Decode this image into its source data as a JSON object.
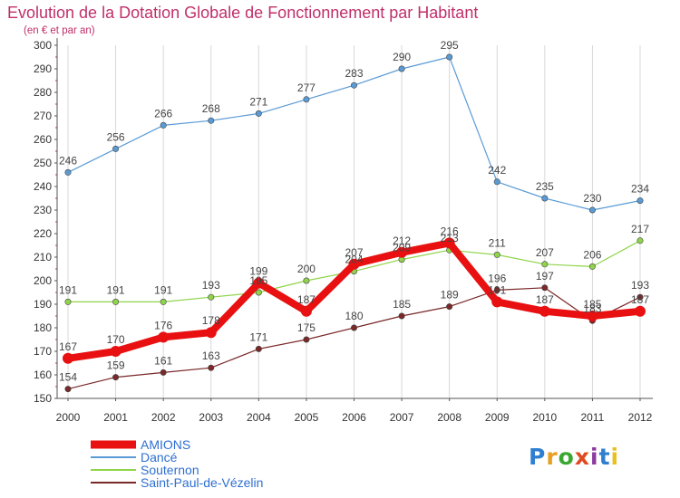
{
  "title": "Evolution de la Dotation Globale de Fonctionnement par Habitant",
  "subtitle": "(en € et par an)",
  "logo": {
    "text": "Proxiti",
    "letter_colors": [
      "#2e7fd0",
      "#e8a020",
      "#3aa830",
      "#e04a20",
      "#8a3aa0",
      "#2e7fd0",
      "#e8c020"
    ]
  },
  "colors": {
    "title": "#c0306a",
    "axis": "#555555",
    "grid": "#d8d8d8",
    "tick_mark": "#c0306a",
    "background": "#ffffff"
  },
  "chart_data": {
    "type": "line",
    "title": "Evolution de la Dotation Globale de Fonctionnement par Habitant",
    "subtitle": "(en € et par an)",
    "x": [
      "2000",
      "2001",
      "2002",
      "2003",
      "2004",
      "2005",
      "2006",
      "2007",
      "2008",
      "2009",
      "2010",
      "2011",
      "2012"
    ],
    "yticks": [
      150,
      160,
      170,
      180,
      190,
      200,
      210,
      220,
      230,
      240,
      250,
      260,
      270,
      280,
      290,
      300
    ],
    "ylim": [
      150,
      300
    ],
    "grid": "vertical",
    "legend_position": "bottom-left",
    "series": [
      {
        "name": "AMIONS",
        "color": "#e81010",
        "values": [
          167,
          170,
          176,
          178,
          199,
          187,
          207,
          212,
          216,
          191,
          187,
          185,
          187
        ],
        "labels": [
          "167",
          "170",
          "176",
          "178",
          "199",
          "187",
          "207",
          "212",
          "216",
          "191",
          "187",
          "185",
          "187"
        ],
        "emphasis": true
      },
      {
        "name": "Dancé",
        "color": "#5b9bd5",
        "values": [
          246,
          256,
          266,
          268,
          271,
          277,
          283,
          290,
          295,
          242,
          235,
          230,
          234
        ],
        "labels": [
          "246",
          "256",
          "266",
          "268",
          "271",
          "277",
          "283",
          "290",
          "295",
          "242",
          "235",
          "230",
          "234"
        ],
        "emphasis": false
      },
      {
        "name": "Souternon",
        "color": "#8fd44a",
        "values": [
          191,
          191,
          191,
          193,
          195,
          200,
          204,
          209,
          213,
          211,
          207,
          206,
          217
        ],
        "labels": [
          "191",
          "191",
          "191",
          "193",
          "195",
          "200",
          "204",
          "209",
          "213",
          "211",
          "207",
          "206",
          "217"
        ],
        "emphasis": false
      },
      {
        "name": "Saint-Paul-de-Vézelin",
        "color": "#7a2828",
        "values": [
          154,
          159,
          161,
          163,
          171,
          175,
          180,
          185,
          189,
          196,
          197,
          183,
          193
        ],
        "labels": [
          "154",
          "159",
          "161",
          "163",
          "171",
          "175",
          "180",
          "185",
          "189",
          "196",
          "197",
          "183",
          "193"
        ],
        "emphasis": false
      }
    ]
  }
}
